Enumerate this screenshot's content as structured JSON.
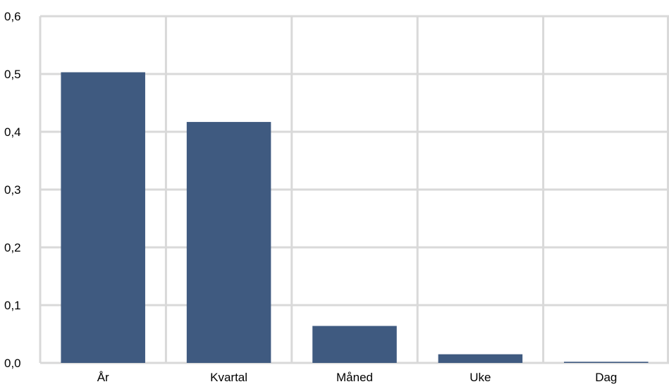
{
  "chart_data": {
    "type": "bar",
    "categories": [
      "År",
      "Kvartal",
      "Måned",
      "Uke",
      "Dag"
    ],
    "values": [
      0.503,
      0.417,
      0.064,
      0.015,
      0.002
    ],
    "y_tick_labels": [
      "0,0",
      "0,1",
      "0,2",
      "0,3",
      "0,4",
      "0,5",
      "0,6"
    ],
    "ylim": [
      0,
      0.6
    ],
    "grid": true,
    "colors": {
      "bar": "#3f5a80",
      "grid": "#d9d9d9",
      "text": "#000000"
    }
  }
}
